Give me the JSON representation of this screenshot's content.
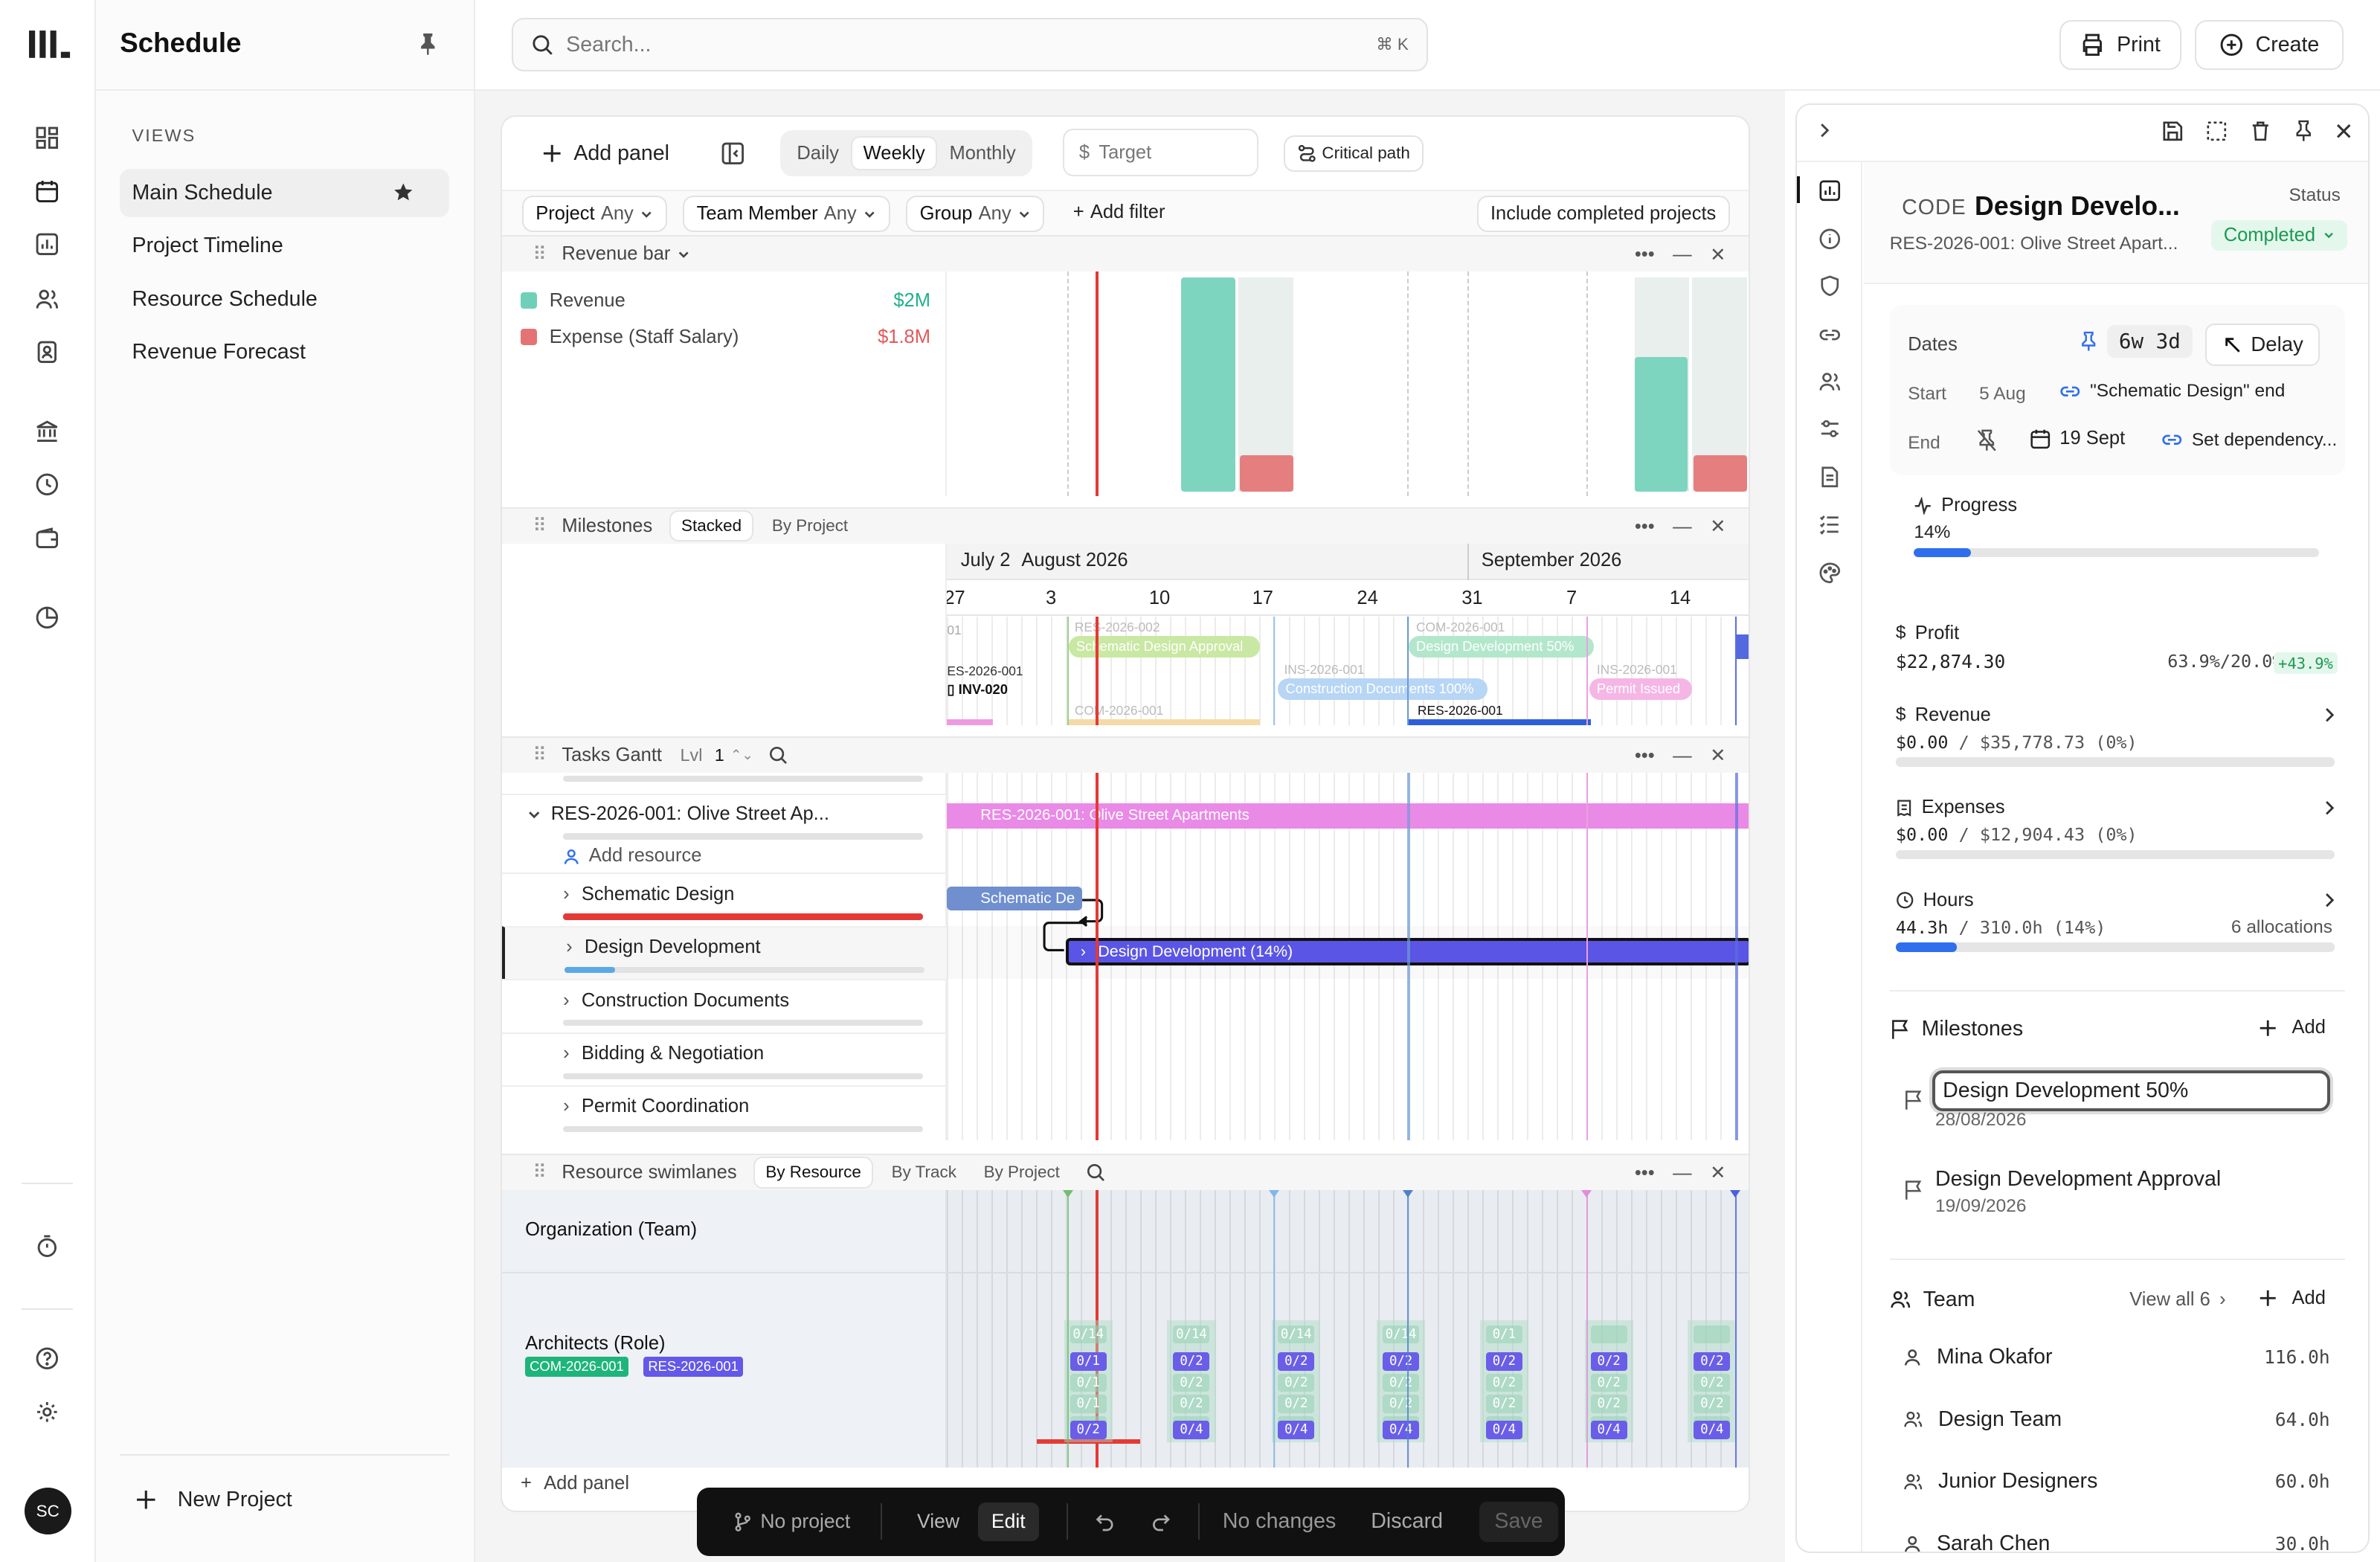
{
  "rail": {
    "avatar": "SC"
  },
  "views_panel": {
    "title": "Schedule",
    "section": "VIEWS",
    "items": [
      "Main Schedule",
      "Project Timeline",
      "Resource Schedule",
      "Revenue Forecast"
    ],
    "new_project": "New Project"
  },
  "topbar": {
    "search_placeholder": "Search...",
    "shortcut": "⌘ K",
    "print": "Print",
    "create": "Create"
  },
  "toolbar": {
    "add_panel": "Add panel",
    "period_tabs": [
      "Daily",
      "Weekly",
      "Monthly"
    ],
    "active_period": "Weekly",
    "target_currency": "$",
    "target_placeholder": "Target",
    "critical_path": "Critical path"
  },
  "filters": {
    "project": {
      "label": "Project",
      "value": "Any"
    },
    "team_member": {
      "label": "Team Member",
      "value": "Any"
    },
    "group": {
      "label": "Group",
      "value": "Any"
    },
    "add_filter": "Add filter",
    "include_completed": "Include completed projects"
  },
  "revenue_panel": {
    "title": "Revenue bar",
    "legend": [
      {
        "name": "Revenue",
        "value": "$2M",
        "color": "#6fd0b8"
      },
      {
        "name": "Expense (Staff Salary)",
        "value": "$1.8M",
        "color": "#e57373"
      }
    ]
  },
  "milestones_panel": {
    "title": "Milestones",
    "tabs": [
      "Stacked",
      "By Project"
    ],
    "months": [
      "July 2",
      "August 2026",
      "September 2026"
    ],
    "weeks": [
      "27",
      "3",
      "10",
      "17",
      "24",
      "31",
      "7",
      "14"
    ],
    "items": [
      {
        "code": "RES-2026-002",
        "label": "Schematic Design Approval",
        "color": "#b8e08a"
      },
      {
        "code": "INS-2026-001",
        "label": "Construction Documents 100%",
        "color": "#9ec5f0"
      },
      {
        "code": "COM-2026-001",
        "label": "Design Development 50%",
        "color": "#a8e3c0"
      },
      {
        "code": "INS-2026-001",
        "label": "Permit Issued",
        "color": "#f0a8e0"
      }
    ],
    "left_items": [
      "ES-2026-001",
      "INV-020",
      "01"
    ],
    "bottom_codes": [
      "COM-2026-001",
      "RES-2026-001"
    ]
  },
  "tasks_panel": {
    "title": "Tasks Gantt",
    "level_label": "Lvl",
    "level": "1",
    "project": "RES-2026-001: Olive Street Ap...",
    "project_bar": "RES-2026-001: Olive Street Apartments",
    "add_resource": "Add resource",
    "tasks": [
      {
        "name": "Schematic Design",
        "progress": 1.0,
        "color": "#e53935"
      },
      {
        "name": "Design Development",
        "progress": 0.14,
        "color": "#5aa9e6"
      },
      {
        "name": "Construction Documents",
        "progress": 0,
        "color": "#5aa9e6"
      },
      {
        "name": "Bidding & Negotiation",
        "progress": 0,
        "color": "#5aa9e6"
      },
      {
        "name": "Permit Coordination",
        "progress": 0,
        "color": "#5aa9e6"
      }
    ],
    "bar_schematic": "Schematic De",
    "bar_design": "Design Development (14%)"
  },
  "swimlanes_panel": {
    "title": "Resource swimlanes",
    "tabs": [
      "By Resource",
      "By Track",
      "By Project"
    ],
    "org": "Organization (Team)",
    "role": "Architects (Role)",
    "badges": [
      {
        "text": "COM-2026-001",
        "color": "#1fb57a"
      },
      {
        "text": "RES-2026-001",
        "color": "#6358e8"
      }
    ],
    "cells": [
      "0/1",
      "0/2",
      "0/2",
      "0/2",
      "0/2",
      "0/2",
      "0/2"
    ],
    "cells_bottom": [
      "0/2",
      "0/4",
      "0/4",
      "0/4",
      "0/4",
      "0/4",
      "0/4"
    ],
    "faded": [
      "0/14",
      "0/14",
      "0/14",
      "0/14",
      "0/1"
    ]
  },
  "add_panel_bottom": "Add panel",
  "bottom_bar": {
    "project": "No project",
    "view": "View",
    "edit": "Edit",
    "status": "No changes",
    "discard": "Discard",
    "save": "Save"
  },
  "detail": {
    "code_label": "CODE",
    "title": "Design Develo...",
    "status_label": "Status",
    "status": "Completed",
    "subtitle": "RES-2026-001: Olive Street Apart...",
    "dates_label": "Dates",
    "duration": "6w 3d",
    "delay": "Delay",
    "start_label": "Start",
    "start": "5 Aug",
    "start_dep": "\"Schematic Design\" end",
    "end_label": "End",
    "end": "19 Sept",
    "set_dep": "Set dependency...",
    "progress_label": "Progress",
    "progress_value": "14%",
    "progress": 0.14,
    "profit_label": "Profit",
    "profit": "$22,874.30",
    "profit_pct": "63.9%/20.0%",
    "profit_delta": "+43.9%",
    "revenue_label": "Revenue",
    "revenue_value": "$0.00",
    "revenue_total": " / $35,778.73 (0%)",
    "expenses_label": "Expenses",
    "expenses_value": "$0.00",
    "expenses_total": " / $12,904.43 (0%)",
    "hours_label": "Hours",
    "hours_value": "44.3h",
    "hours_total": " / 310.0h (14%)",
    "allocations": "6 allocations",
    "hours_progress": 0.14,
    "milestones_label": "Milestones",
    "add": "Add",
    "milestones": [
      {
        "name": "Design Development 50%",
        "date": "28/08/2026"
      },
      {
        "name": "Design Development Approval",
        "date": "19/09/2026"
      }
    ],
    "team_label": "Team",
    "view_all": "View all 6",
    "team": [
      {
        "name": "Mina Okafor",
        "hours": "116.0h"
      },
      {
        "name": "Design Team",
        "hours": "64.0h"
      },
      {
        "name": "Junior Designers",
        "hours": "60.0h"
      },
      {
        "name": "Sarah Chen",
        "hours": "30.0h"
      }
    ]
  }
}
